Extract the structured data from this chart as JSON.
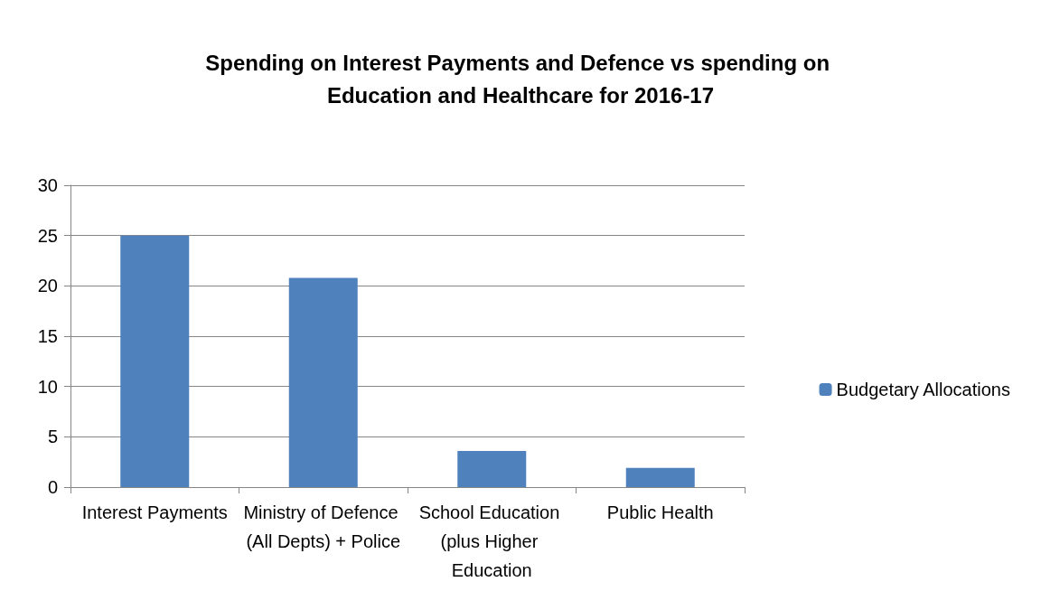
{
  "chart_data": {
    "type": "bar",
    "title": "Spending on Interest Payments and Defence vs spending on Education and Healthcare for 2016-17",
    "categories": [
      "Interest Payments",
      "Ministry of Defence (All Depts) + Police",
      "School Education (plus Higher Education",
      "Public Health"
    ],
    "series": [
      {
        "name": "Budgetary Allocations",
        "color": "#4f81bd",
        "values": [
          25,
          20.8,
          3.6,
          1.9
        ]
      }
    ],
    "ylim": [
      0,
      30
    ],
    "yticks": [
      0,
      5,
      10,
      15,
      20,
      25,
      30
    ],
    "grid": "y",
    "legend": "right"
  }
}
